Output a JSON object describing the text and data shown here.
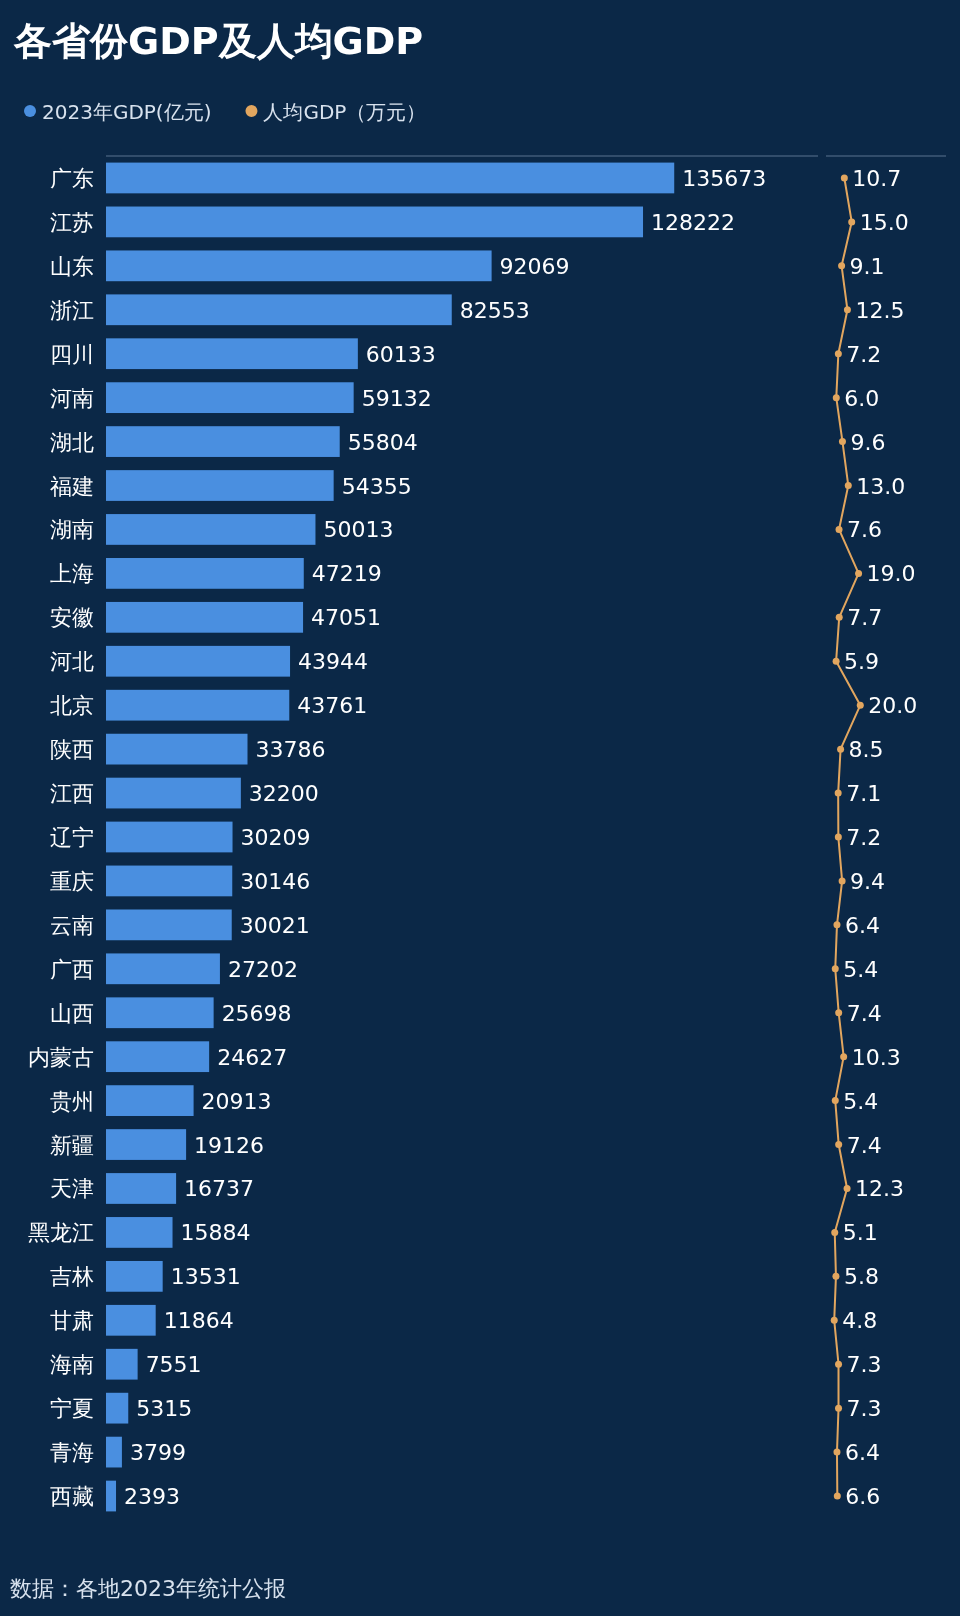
{
  "chart_data": [
    {
      "type": "bar",
      "orientation": "horizontal",
      "title": "各省份GDP及人均GDP",
      "categories": [
        "广东",
        "江苏",
        "山东",
        "浙江",
        "四川",
        "河南",
        "湖北",
        "福建",
        "湖南",
        "上海",
        "安徽",
        "河北",
        "北京",
        "陕西",
        "江西",
        "辽宁",
        "重庆",
        "云南",
        "广西",
        "山西",
        "内蒙古",
        "贵州",
        "新疆",
        "天津",
        "黑龙江",
        "吉林",
        "甘肃",
        "海南",
        "宁夏",
        "青海",
        "西藏"
      ],
      "series": [
        {
          "name": "2023年GDP(亿元)",
          "color": "#4a8fe0",
          "values": [
            135673,
            128222,
            92069,
            82553,
            60133,
            59132,
            55804,
            54355,
            50013,
            47219,
            47051,
            43944,
            43761,
            33786,
            32200,
            30209,
            30146,
            30021,
            27202,
            25698,
            24627,
            20913,
            19126,
            16737,
            15884,
            13531,
            11864,
            7551,
            5315,
            3799,
            2393
          ]
        }
      ],
      "xlim": [
        0,
        170000
      ],
      "data_labels": true,
      "legend": "top left",
      "tick_labels": "y",
      "annotations": [
        "数据：各地2023年统计公报"
      ]
    },
    {
      "type": "line",
      "orientation": "horizontal",
      "categories": [
        null,
        null,
        null,
        null,
        null,
        null,
        null,
        null,
        null,
        null,
        null,
        null,
        null,
        null,
        null,
        null,
        null,
        null,
        null,
        null,
        null,
        null,
        null,
        null,
        null,
        null,
        null,
        null,
        null,
        null,
        null
      ],
      "series": [
        {
          "name": "人均GDP（万元）",
          "color": "#e2a65f",
          "values": [
            10.7,
            15.0,
            9.1,
            12.5,
            7.2,
            6.0,
            9.6,
            13.0,
            7.6,
            19.0,
            7.7,
            5.9,
            20.0,
            8.5,
            7.1,
            7.2,
            9.4,
            6.4,
            5.4,
            7.4,
            10.3,
            5.4,
            7.4,
            12.3,
            5.1,
            5.8,
            4.8,
            7.3,
            7.3,
            6.4,
            6.6
          ],
          "value_labels": [
            "10.7",
            "15.0",
            "9.1",
            "12.5",
            "7.2",
            "6.0",
            "9.6",
            "13.0",
            "7.6",
            "19.0",
            "7.7",
            "5.9",
            "20.0",
            "8.5",
            "7.1",
            "7.2",
            "9.4",
            "6.4",
            "5.4",
            "7.4",
            "10.3",
            "5.4",
            "7.4",
            "12.3",
            "5.1",
            "5.8",
            "4.8",
            "7.3",
            "7.3",
            "6.4",
            "6.6"
          ]
        }
      ],
      "xlim": [
        0,
        70
      ],
      "marker": "circle",
      "legend": "top left",
      "tick_labels": false
    }
  ]
}
